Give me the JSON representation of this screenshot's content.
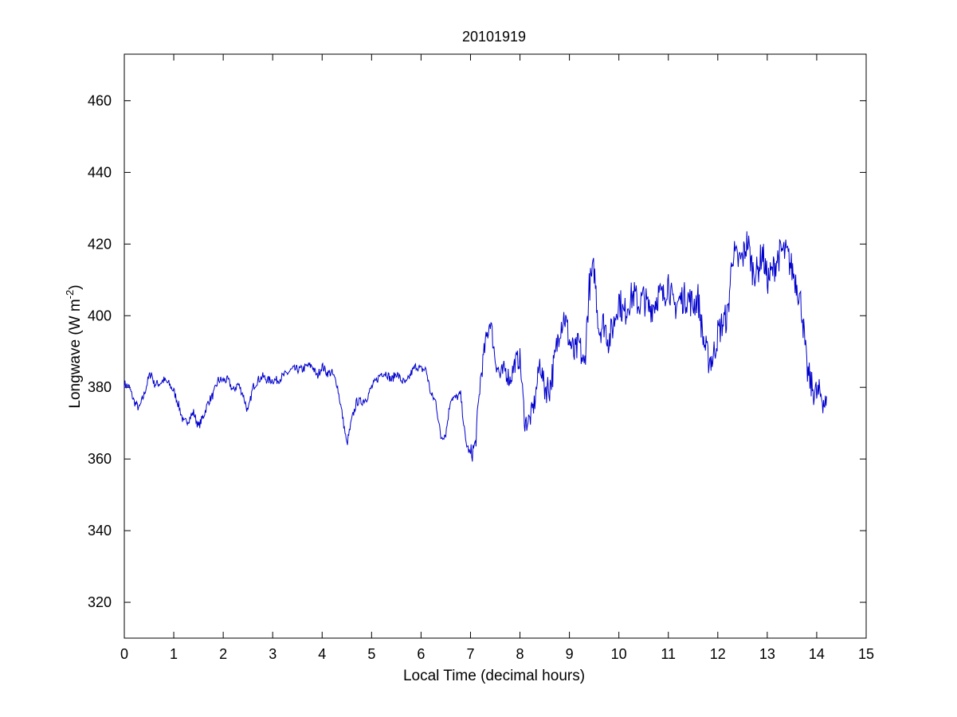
{
  "chart_data": {
    "type": "line",
    "title": "20101919",
    "xlabel": "Local Time (decimal hours)",
    "ylabel": {
      "main": "Longwave (W m",
      "superscript": "-2",
      "close": ")"
    },
    "xlim": [
      0,
      15
    ],
    "ylim": [
      310,
      473
    ],
    "xticks": [
      0,
      1,
      2,
      3,
      4,
      5,
      6,
      7,
      8,
      9,
      10,
      11,
      12,
      13,
      14,
      15
    ],
    "xtick_labels": [
      "0",
      "1",
      "2",
      "3",
      "4",
      "5",
      "6",
      "7",
      "8",
      "9",
      "10",
      "11",
      "12",
      "13",
      "14",
      "15"
    ],
    "yticks": [
      320,
      340,
      360,
      380,
      400,
      420,
      440,
      460
    ],
    "ytick_labels": [
      "320",
      "340",
      "360",
      "380",
      "400",
      "420",
      "440",
      "460"
    ],
    "grid": false,
    "line_color": "#0000cc",
    "series": [
      {
        "x": [
          0.0,
          0.1,
          0.2,
          0.3,
          0.4,
          0.5,
          0.55,
          0.6,
          0.7,
          0.8,
          0.9,
          1.0,
          1.1,
          1.2,
          1.3,
          1.4,
          1.5,
          1.6,
          1.7,
          1.8,
          1.9,
          2.0,
          2.1,
          2.2,
          2.3,
          2.4,
          2.5,
          2.6,
          2.7,
          2.8,
          2.9,
          3.0,
          3.1,
          3.2,
          3.3,
          3.4,
          3.5,
          3.6,
          3.7,
          3.8,
          3.9,
          4.0,
          4.1,
          4.2,
          4.3,
          4.4,
          4.5,
          4.6,
          4.7,
          4.8,
          4.9,
          5.0,
          5.1,
          5.2,
          5.3,
          5.4,
          5.5,
          5.6,
          5.7,
          5.8,
          5.9,
          6.0,
          6.1,
          6.2,
          6.3,
          6.4,
          6.5,
          6.6,
          6.7,
          6.8,
          6.9,
          7.0,
          7.1,
          7.2,
          7.3,
          7.4,
          7.5,
          7.6,
          7.7,
          7.8,
          7.9,
          8.0,
          8.1,
          8.2,
          8.3,
          8.4,
          8.5,
          8.6,
          8.7,
          8.8,
          8.9,
          9.0,
          9.1,
          9.2,
          9.3,
          9.4,
          9.5,
          9.6,
          9.7,
          9.8,
          9.9,
          10.0,
          10.1,
          10.2,
          10.3,
          10.4,
          10.5,
          10.6,
          10.7,
          10.8,
          10.9,
          11.0,
          11.1,
          11.2,
          11.3,
          11.4,
          11.5,
          11.6,
          11.7,
          11.8,
          11.9,
          12.0,
          12.1,
          12.2,
          12.3,
          12.4,
          12.5,
          12.6,
          12.7,
          12.8,
          12.9,
          13.0,
          13.1,
          13.2,
          13.3,
          13.4,
          13.5,
          13.6,
          13.7,
          13.8,
          13.9,
          14.0,
          14.1,
          14.2
        ],
        "y": [
          381,
          380,
          376,
          374,
          378,
          383,
          384,
          381,
          381,
          382,
          381,
          379,
          375,
          370,
          371,
          373,
          369,
          372,
          376,
          378,
          382,
          382,
          382,
          379,
          381,
          378,
          373,
          380,
          382,
          383,
          382,
          382,
          382,
          383,
          384,
          385,
          385,
          385,
          386,
          386,
          383,
          386,
          384,
          384,
          381,
          373,
          364,
          371,
          376,
          376,
          377,
          380,
          382,
          384,
          384,
          382,
          384,
          382,
          381,
          384,
          386,
          385,
          385,
          378,
          376,
          366,
          367,
          377,
          377,
          378,
          365,
          361,
          364,
          382,
          392,
          399,
          388,
          383,
          385,
          382,
          387,
          388,
          370,
          371,
          376,
          387,
          380,
          380,
          387,
          397,
          400,
          393,
          389,
          392,
          385,
          408,
          413,
          396,
          398,
          393,
          398,
          405,
          400,
          404,
          406,
          403,
          405,
          402,
          403,
          406,
          405,
          410,
          402,
          404,
          405,
          405,
          403,
          405,
          394,
          388,
          388,
          395,
          398,
          400,
          418,
          415,
          416,
          421,
          413,
          412,
          418,
          410,
          412,
          416,
          418,
          417,
          413,
          409,
          402,
          385,
          380,
          378,
          378,
          374
        ],
        "note": "approximate digitized trace; plotted with added fine noise to mimic original sampling"
      }
    ]
  }
}
